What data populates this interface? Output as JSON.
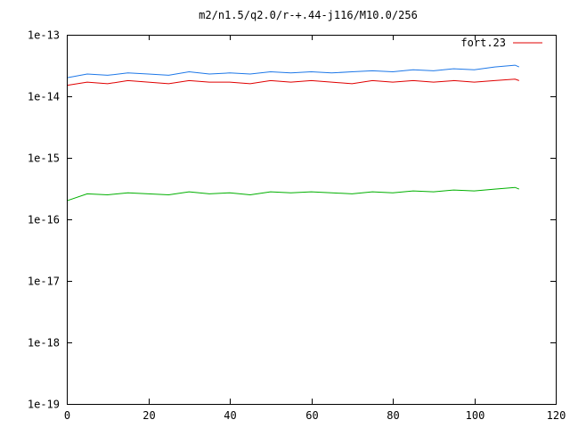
{
  "chart_data": {
    "type": "line",
    "title": "m2/n1.5/q2.0/r-+.44-j116/M10.0/256",
    "xlabel": "",
    "ylabel": "",
    "x_scale": "linear",
    "y_scale": "log",
    "xlim": [
      0,
      120
    ],
    "ylim": [
      1e-19,
      1e-13
    ],
    "x_ticks": [
      0,
      20,
      40,
      60,
      80,
      100,
      120
    ],
    "x_tick_labels": [
      "0",
      "20",
      "40",
      "60",
      "80",
      "100",
      "120"
    ],
    "y_ticks": [
      1e-19,
      1e-18,
      1e-17,
      1e-16,
      1e-15,
      1e-14,
      1e-13
    ],
    "y_tick_labels": [
      "1e-19",
      "1e-18",
      "1e-17",
      "1e-16",
      "1e-15",
      "1e-14",
      "1e-13"
    ],
    "grid": false,
    "legend_position": "top-right",
    "legend": [
      {
        "label": "fort.23",
        "color": "#e00000"
      }
    ],
    "series": [
      {
        "color": "#e00000",
        "x": [
          0,
          5,
          10,
          15,
          20,
          25,
          30,
          35,
          40,
          45,
          50,
          55,
          60,
          65,
          70,
          75,
          80,
          85,
          90,
          95,
          100,
          105,
          110,
          111
        ],
        "y": [
          1.5e-14,
          1.7e-14,
          1.6e-14,
          1.8e-14,
          1.7e-14,
          1.6e-14,
          1.8e-14,
          1.7e-14,
          1.7e-14,
          1.6e-14,
          1.8e-14,
          1.7e-14,
          1.8e-14,
          1.7e-14,
          1.6e-14,
          1.8e-14,
          1.7e-14,
          1.8e-14,
          1.7e-14,
          1.8e-14,
          1.7e-14,
          1.8e-14,
          1.9e-14,
          1.8e-14
        ]
      },
      {
        "color": "#1e78e8",
        "x": [
          0,
          5,
          10,
          15,
          20,
          25,
          30,
          35,
          40,
          45,
          50,
          55,
          60,
          65,
          70,
          75,
          80,
          85,
          90,
          95,
          100,
          105,
          110,
          111
        ],
        "y": [
          2e-14,
          2.3e-14,
          2.2e-14,
          2.4e-14,
          2.3e-14,
          2.2e-14,
          2.5e-14,
          2.3e-14,
          2.4e-14,
          2.3e-14,
          2.5e-14,
          2.4e-14,
          2.5e-14,
          2.4e-14,
          2.5e-14,
          2.6e-14,
          2.5e-14,
          2.7e-14,
          2.6e-14,
          2.8e-14,
          2.7e-14,
          3e-14,
          3.2e-14,
          3e-14
        ]
      },
      {
        "color": "#00b000",
        "x": [
          0,
          5,
          10,
          15,
          20,
          25,
          30,
          35,
          40,
          45,
          50,
          55,
          60,
          65,
          70,
          75,
          80,
          85,
          90,
          95,
          100,
          105,
          110,
          111
        ],
        "y": [
          2e-16,
          2.6e-16,
          2.5e-16,
          2.7e-16,
          2.6e-16,
          2.5e-16,
          2.8e-16,
          2.6e-16,
          2.7e-16,
          2.5e-16,
          2.8e-16,
          2.7e-16,
          2.8e-16,
          2.7e-16,
          2.6e-16,
          2.8e-16,
          2.7e-16,
          2.9e-16,
          2.8e-16,
          3e-16,
          2.9e-16,
          3.1e-16,
          3.3e-16,
          3.1e-16
        ]
      }
    ]
  }
}
